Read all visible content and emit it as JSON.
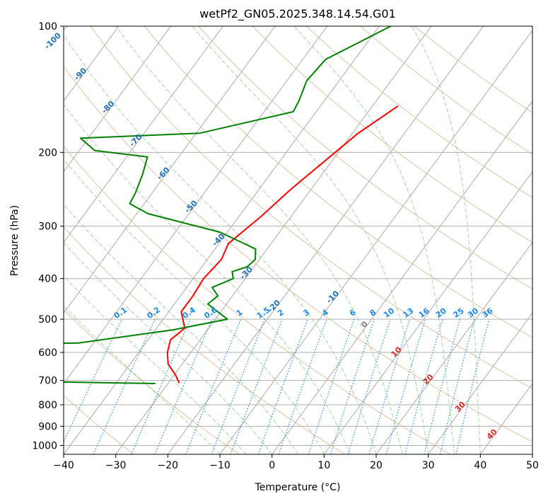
{
  "chart_data": {
    "type": "line",
    "title": "wetPf2_GN05.2025.348.14.54.G01",
    "xlabel": "Temperature (°C)",
    "ylabel": "Pressure (hPa)",
    "xlim": [
      -40,
      50
    ],
    "ylim": [
      1050,
      100
    ],
    "y_scale": "log",
    "x_ticks": [
      -40,
      -30,
      -20,
      -10,
      0,
      10,
      20,
      30,
      40,
      50
    ],
    "y_ticks": [
      100,
      200,
      300,
      400,
      500,
      600,
      700,
      800,
      900,
      1000
    ],
    "grid": true,
    "series": [
      {
        "role": "temperature",
        "color": "#ff0000",
        "points": [
          [
            -25.1,
            155
          ],
          [
            -28.9,
            180
          ],
          [
            -30.6,
            200
          ],
          [
            -33.9,
            245
          ],
          [
            -35.8,
            285
          ],
          [
            -38.2,
            330
          ],
          [
            -37.3,
            360
          ],
          [
            -38.0,
            400
          ],
          [
            -37.6,
            440
          ],
          [
            -37.6,
            480
          ],
          [
            -34.6,
            525
          ],
          [
            -35.7,
            560
          ],
          [
            -34.5,
            600
          ],
          [
            -32.7,
            640
          ],
          [
            -29.7,
            680
          ],
          [
            -27.9,
            710
          ]
        ]
      },
      {
        "role": "dewpoint",
        "color": "#008000",
        "points": [
          [
            -37.8,
            100
          ],
          [
            -45.6,
            120
          ],
          [
            -46.2,
            135
          ],
          [
            -44.9,
            150
          ],
          [
            -44.4,
            160
          ],
          [
            -59.3,
            180
          ],
          [
            -81.5,
            185
          ],
          [
            -77.0,
            198
          ],
          [
            -66.0,
            205
          ],
          [
            -64.5,
            225
          ],
          [
            -63.2,
            250
          ],
          [
            -62.8,
            265
          ],
          [
            -57.9,
            280
          ],
          [
            -41.4,
            310
          ],
          [
            -32.2,
            340
          ],
          [
            -30.8,
            360
          ],
          [
            -31.3,
            375
          ],
          [
            -33.5,
            385
          ],
          [
            -32.3,
            400
          ],
          [
            -35.1,
            420
          ],
          [
            -32.8,
            440
          ],
          [
            -33.6,
            460
          ],
          [
            -27.7,
            500
          ],
          [
            -36.6,
            530
          ],
          [
            -52.9,
            570
          ],
          [
            -104.9,
            580
          ],
          [
            -57.3,
            600
          ],
          [
            -59.1,
            625
          ],
          [
            -64.4,
            640
          ],
          [
            -93.4,
            650
          ],
          [
            -57.4,
            675
          ],
          [
            -88.0,
            690
          ],
          [
            -68.1,
            700
          ],
          [
            -32.4,
            712
          ]
        ]
      }
    ],
    "isotherm_labels": [
      "-100",
      "-90",
      "-80",
      "-70",
      "-60",
      "-50",
      "-40",
      "-30",
      "-20",
      "-10",
      "0",
      "10",
      "20",
      "30",
      "40"
    ],
    "mixing_ratio_labels": [
      "0.1",
      "0.2",
      "0.4",
      "0.6",
      "1",
      "1.5",
      "2",
      "3",
      "4",
      "6",
      "8",
      "10",
      "13",
      "16",
      "20",
      "25",
      "30",
      "36"
    ],
    "colors": {
      "temperature": "#ff0000",
      "dewpoint": "#008000",
      "grid": "#b0b0b0",
      "dry_adiabat": "#d2b48c",
      "moist_adiabat": "#90c890",
      "isotherm_dashed": "#ffa07a",
      "mixing_ratio": "#1e88e5",
      "isotherm_label_cold": "#1f6fb2",
      "isotherm_label_warm": "#d62728",
      "isotherm_label_zero": "#808080"
    }
  }
}
